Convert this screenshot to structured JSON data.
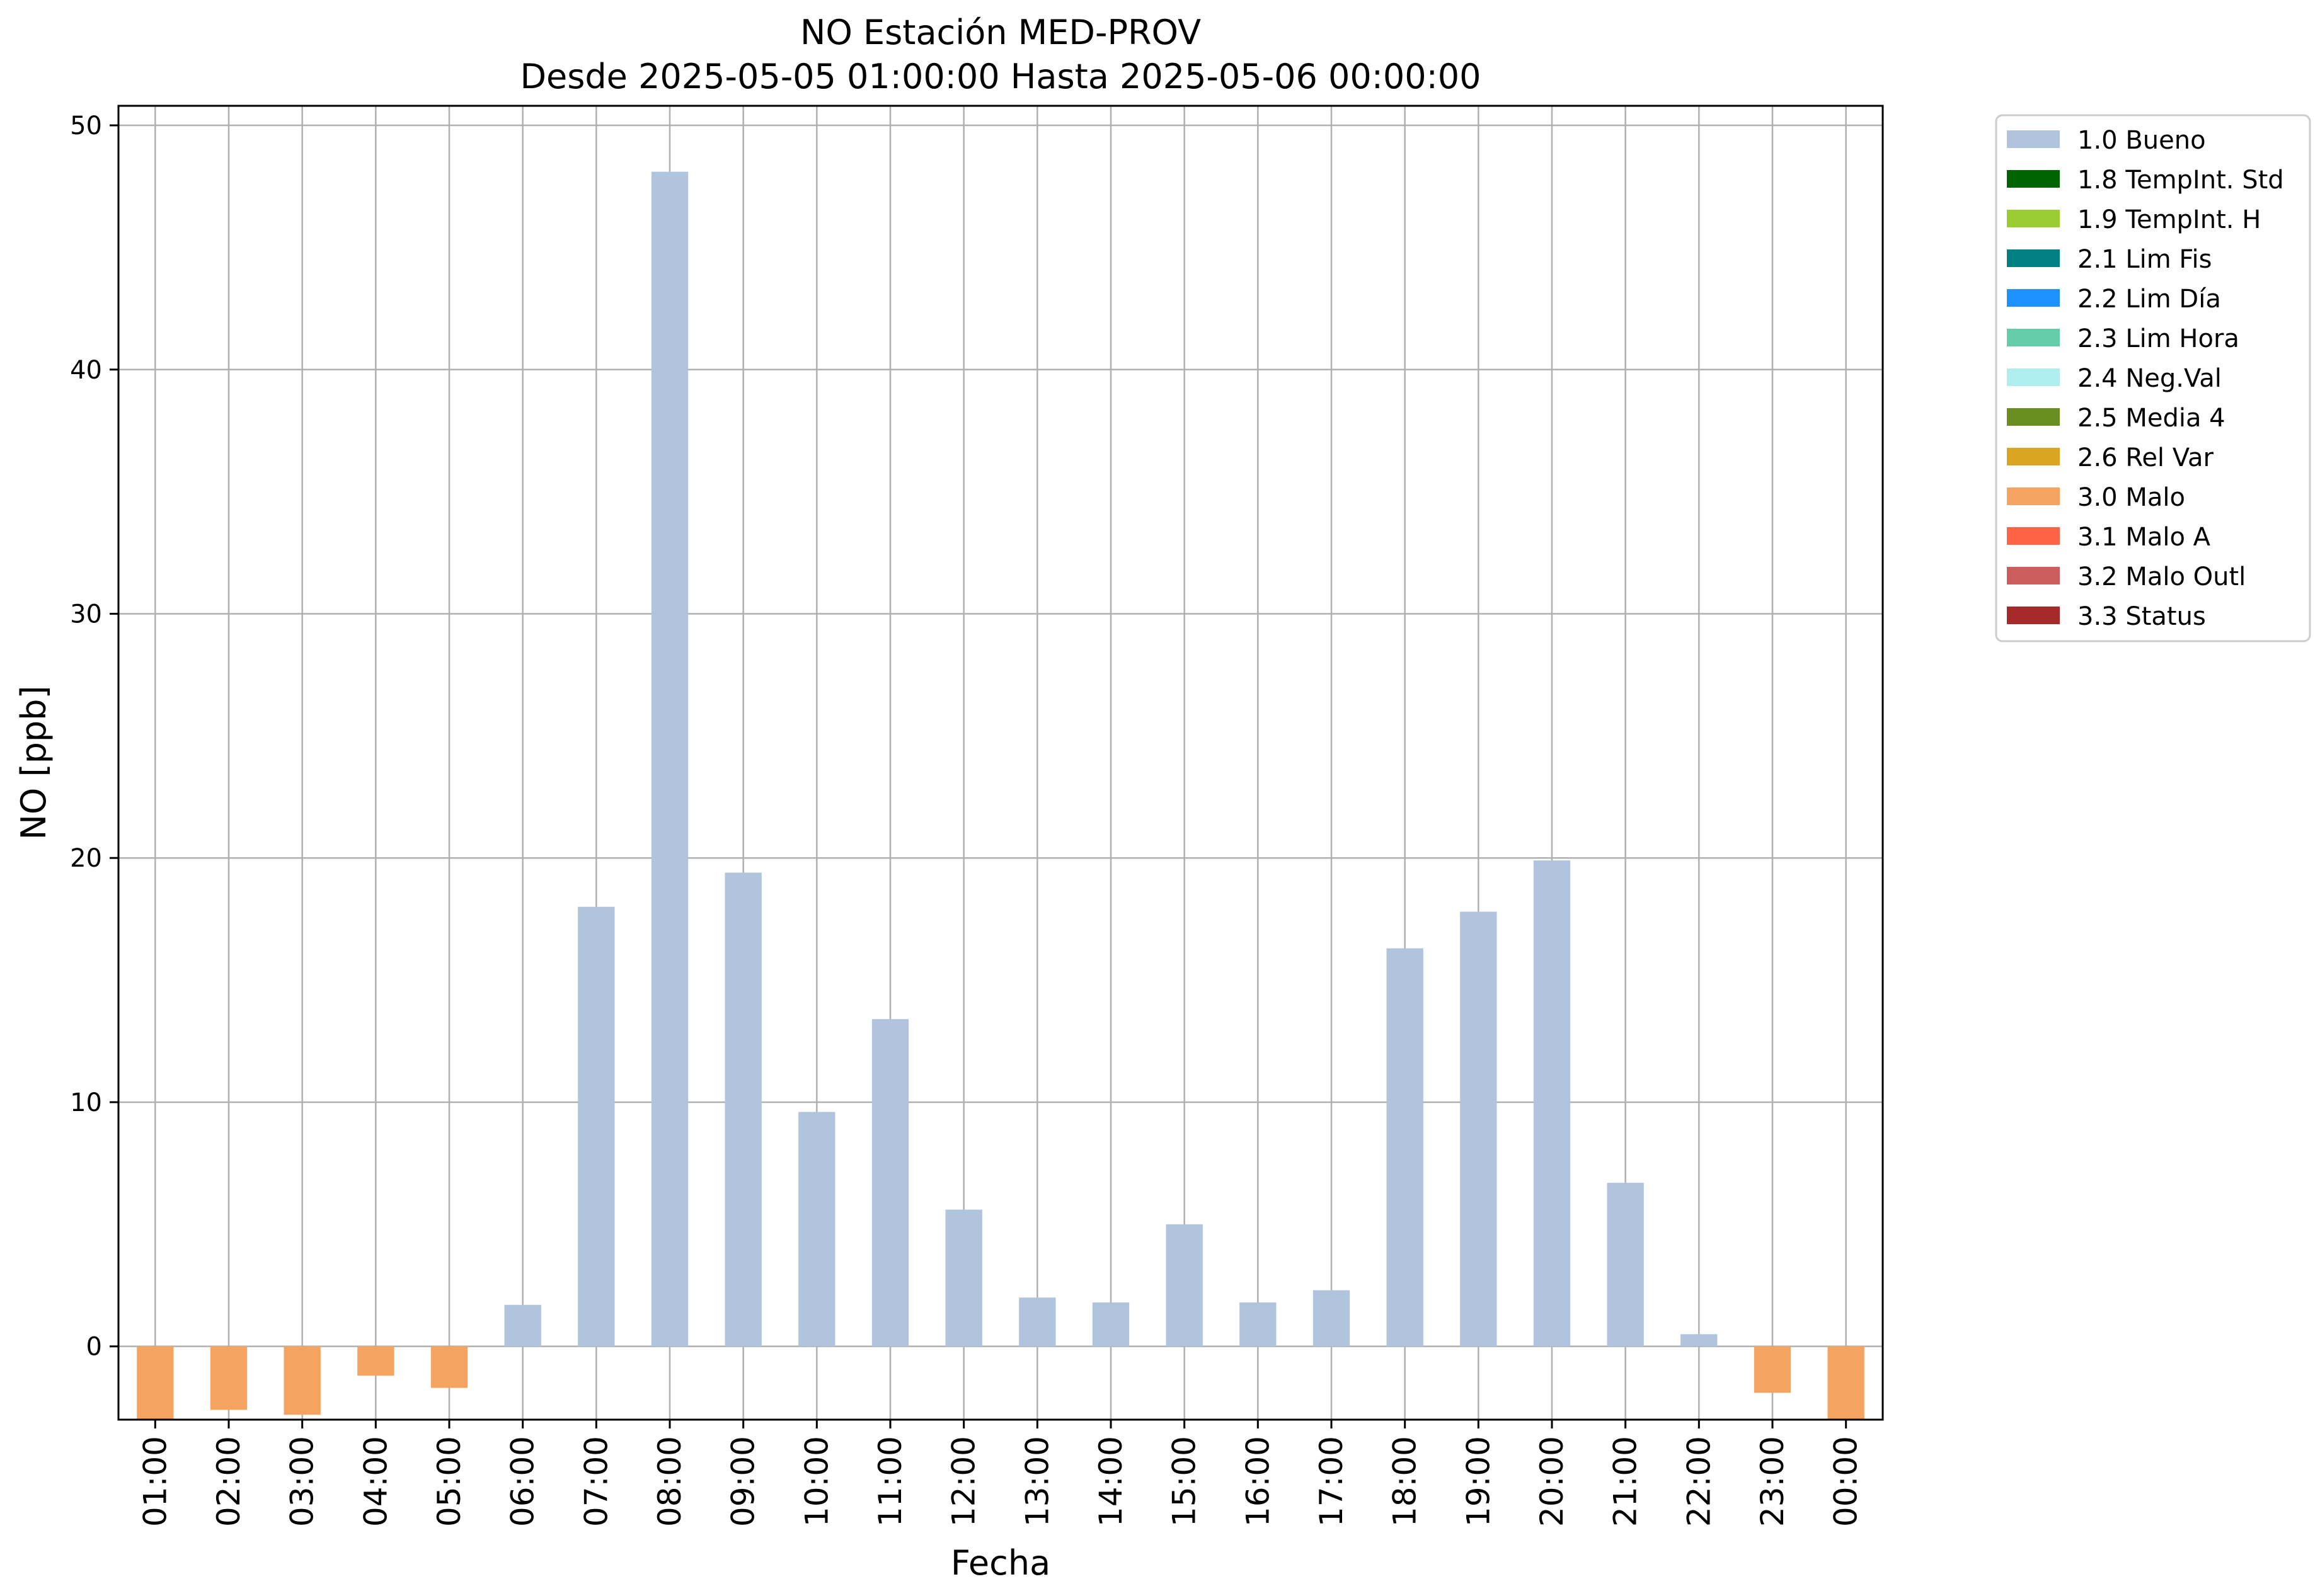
{
  "chart_data": {
    "type": "bar",
    "title": "NO Estación MED-PROV",
    "subtitle": "Desde 2025-05-05 01:00:00 Hasta 2025-05-06 00:00:00",
    "xlabel": "Fecha",
    "ylabel": "NO [ppb]",
    "ylim": [
      -3,
      50.8
    ],
    "yticks": [
      0,
      10,
      20,
      30,
      40,
      50
    ],
    "grid": true,
    "legend_position": "outside-right",
    "categories": [
      "01:00",
      "02:00",
      "03:00",
      "04:00",
      "05:00",
      "06:00",
      "07:00",
      "08:00",
      "09:00",
      "10:00",
      "11:00",
      "12:00",
      "13:00",
      "14:00",
      "15:00",
      "16:00",
      "17:00",
      "18:00",
      "19:00",
      "20:00",
      "21:00",
      "22:00",
      "23:00",
      "00:00"
    ],
    "values": [
      -3.0,
      -2.6,
      -2.8,
      -1.2,
      -1.7,
      1.7,
      18.0,
      48.1,
      19.4,
      9.6,
      13.4,
      5.6,
      2.0,
      1.8,
      5.0,
      1.8,
      2.3,
      16.3,
      17.8,
      19.9,
      6.7,
      0.5,
      -1.9,
      -3.0
    ],
    "value_flags": [
      "3.0 Malo",
      "3.0 Malo",
      "3.0 Malo",
      "3.0 Malo",
      "3.0 Malo",
      "1.0 Bueno",
      "1.0 Bueno",
      "1.0 Bueno",
      "1.0 Bueno",
      "1.0 Bueno",
      "1.0 Bueno",
      "1.0 Bueno",
      "1.0 Bueno",
      "1.0 Bueno",
      "1.0 Bueno",
      "1.0 Bueno",
      "1.0 Bueno",
      "1.0 Bueno",
      "1.0 Bueno",
      "1.0 Bueno",
      "1.0 Bueno",
      "1.0 Bueno",
      "3.0 Malo",
      "3.0 Malo"
    ],
    "legend": [
      {
        "label": "1.0 Bueno",
        "color": "#b0c4de"
      },
      {
        "label": "1.8 TempInt. Std",
        "color": "#006400"
      },
      {
        "label": "1.9 TempInt. H",
        "color": "#9acd32"
      },
      {
        "label": "2.1 Lim Fis",
        "color": "#008080"
      },
      {
        "label": "2.2 Lim Día",
        "color": "#1e90ff"
      },
      {
        "label": "2.3 Lim Hora",
        "color": "#66cdaa"
      },
      {
        "label": "2.4 Neg.Val",
        "color": "#afeeee"
      },
      {
        "label": "2.5 Media 4",
        "color": "#6b8e23"
      },
      {
        "label": "2.6 Rel Var",
        "color": "#daa520"
      },
      {
        "label": "3.0 Malo",
        "color": "#f4a460"
      },
      {
        "label": "3.1 Malo A",
        "color": "#ff6347"
      },
      {
        "label": "3.2 Malo Outl",
        "color": "#cd5c5c"
      },
      {
        "label": "3.3 Status",
        "color": "#a52a2a"
      }
    ]
  }
}
